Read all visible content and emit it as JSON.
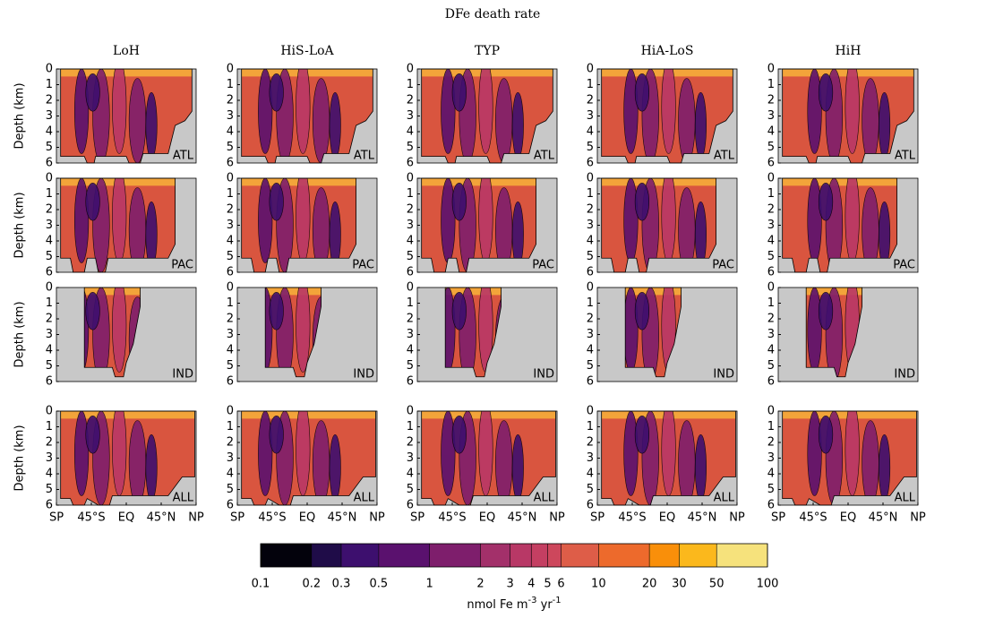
{
  "chart_data": {
    "type": "contour-grid",
    "title": "DFe death rate",
    "columns": [
      "LoH",
      "HiS-LoA",
      "TYP",
      "HiA-LoS",
      "HiH"
    ],
    "rows": [
      "ATL",
      "PAC",
      "IND",
      "ALL"
    ],
    "ylabel": "Depth (km)",
    "ylim": [
      0,
      6
    ],
    "yticks": [
      0,
      1,
      2,
      3,
      4,
      5,
      6
    ],
    "xlim": [
      -90,
      90
    ],
    "xticks": [
      {
        "value": -90,
        "label": "SP"
      },
      {
        "value": -45,
        "label": "45°S"
      },
      {
        "value": 0,
        "label": "EQ"
      },
      {
        "value": 45,
        "label": "45°N"
      },
      {
        "value": 90,
        "label": "NP"
      }
    ],
    "colorbar": {
      "scale": "log",
      "lim": [
        0.1,
        100
      ],
      "ticks": [
        0.1,
        0.2,
        0.3,
        0.5,
        1,
        2,
        3,
        4,
        5,
        6,
        10,
        20,
        30,
        50,
        100
      ],
      "colors": [
        "#03020c",
        "#1f0c48",
        "#3d0f6e",
        "#5a116e",
        "#7e1e6c",
        "#a3306a",
        "#b83866",
        "#c43f62",
        "#cd475c",
        "#de5d48",
        "#ed6a2c",
        "#f98f0a",
        "#fbb81c",
        "#f6e27c"
      ],
      "label": [
        "nmol Fe m",
        "-3",
        " yr",
        "-1"
      ]
    }
  }
}
